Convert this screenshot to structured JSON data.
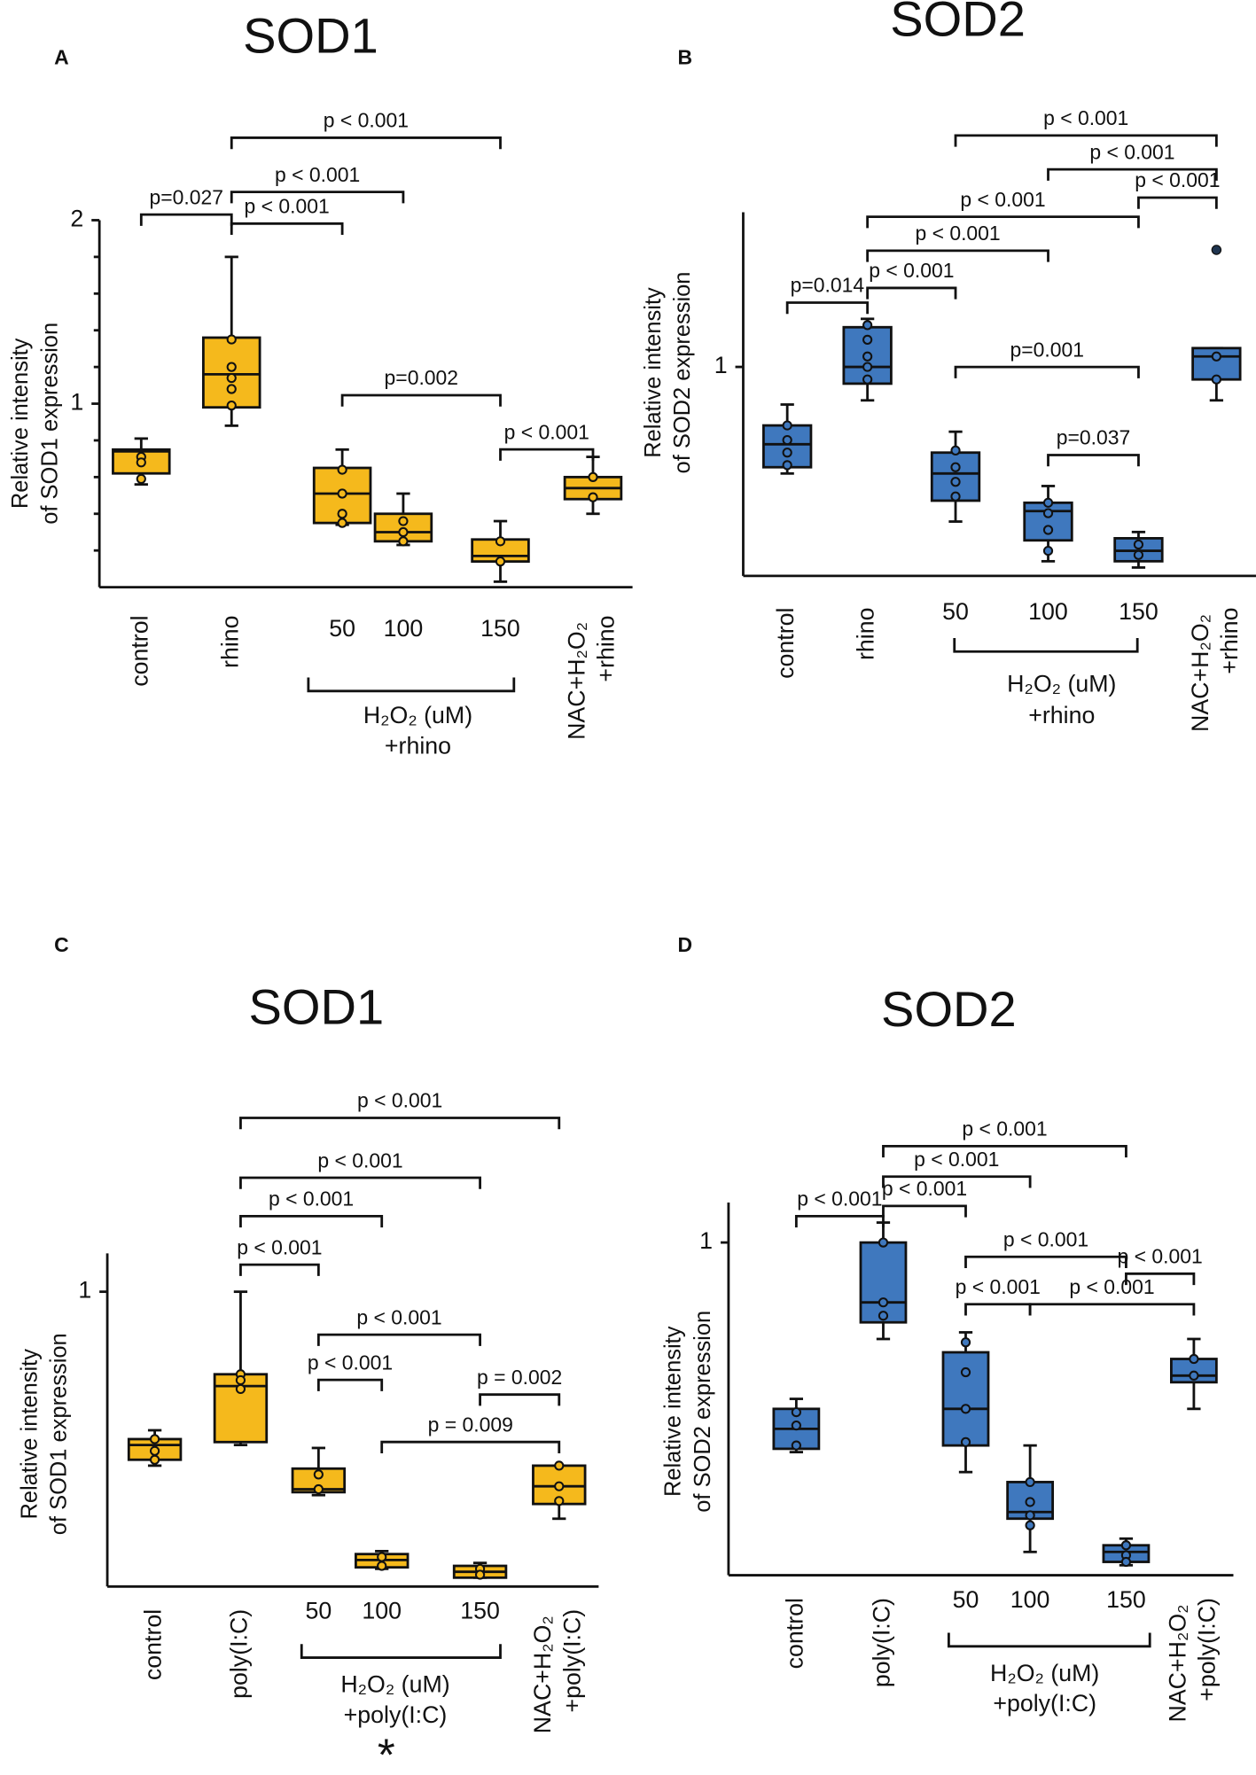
{
  "chart_data": [
    {
      "type": "box",
      "panel": "A",
      "title": "SOD1",
      "ylabel": [
        "Relative intensity",
        "of SOD1 expression"
      ],
      "ylim": [
        0,
        2
      ],
      "yticks": [
        1,
        2
      ],
      "yminor_ticks": [
        0.2,
        0.4,
        0.6,
        0.8,
        1.2,
        1.4,
        1.6,
        1.8
      ],
      "categories": [
        "control",
        "rhino",
        "50",
        "100",
        "150",
        "NAC+H₂O₂ +rhino"
      ],
      "group_label": [
        "H₂O₂ (uM)",
        "+rhino"
      ],
      "color": "#f5b91c",
      "boxes": [
        {
          "low": 0.56,
          "q1": 0.62,
          "median": 0.74,
          "q3": 0.75,
          "high": 0.81,
          "points": [
            0.71,
            0.68,
            0.59
          ]
        },
        {
          "low": 0.88,
          "q1": 0.98,
          "median": 1.16,
          "q3": 1.36,
          "high": 1.8,
          "points": [
            1.35,
            1.2,
            1.14,
            1.08,
            0.99
          ]
        },
        {
          "low": 0.34,
          "q1": 0.35,
          "median": 0.51,
          "q3": 0.65,
          "high": 0.75,
          "points": [
            0.64,
            0.51,
            0.4,
            0.35
          ]
        },
        {
          "low": 0.23,
          "q1": 0.25,
          "median": 0.3,
          "q3": 0.4,
          "high": 0.51,
          "points": [
            0.36,
            0.3,
            0.25
          ]
        },
        {
          "low": 0.03,
          "q1": 0.14,
          "median": 0.17,
          "q3": 0.26,
          "high": 0.36,
          "points": [
            0.25,
            0.14
          ]
        },
        {
          "low": 0.4,
          "q1": 0.48,
          "median": 0.54,
          "q3": 0.6,
          "high": 0.71,
          "points": [
            0.6,
            0.49
          ]
        }
      ],
      "comparisons": [
        {
          "between": [
            0,
            1
          ],
          "label": "p=0.027"
        },
        {
          "between": [
            1,
            2
          ],
          "label": "p < 0.001"
        },
        {
          "between": [
            1,
            3
          ],
          "label": "p < 0.001"
        },
        {
          "between": [
            1,
            4
          ],
          "label": "p < 0.001"
        },
        {
          "between": [
            2,
            4
          ],
          "label": "p=0.002"
        },
        {
          "between": [
            4,
            5
          ],
          "label": "p < 0.001"
        }
      ]
    },
    {
      "type": "box",
      "panel": "B",
      "title": "SOD2",
      "ylabel": [
        "Relative intensity",
        "of SOD2 expression"
      ],
      "ylim": [
        0,
        1.74
      ],
      "yticks": [
        1
      ],
      "categories": [
        "control",
        "rhino",
        "50",
        "100",
        "150",
        "NAC+H₂O₂ +rhino"
      ],
      "group_label": [
        "H₂O₂ (uM)",
        "+rhino"
      ],
      "color": "#3f78be",
      "boxes": [
        {
          "low": 0.49,
          "q1": 0.52,
          "median": 0.63,
          "q3": 0.72,
          "high": 0.82,
          "points": [
            0.72,
            0.65,
            0.59,
            0.53
          ]
        },
        {
          "low": 0.84,
          "q1": 0.92,
          "median": 1.0,
          "q3": 1.19,
          "high": 1.23,
          "points": [
            1.2,
            1.13,
            1.05,
            1.0,
            0.94
          ]
        },
        {
          "low": 0.26,
          "q1": 0.36,
          "median": 0.49,
          "q3": 0.59,
          "high": 0.69,
          "points": [
            0.6,
            0.52,
            0.45,
            0.38
          ]
        },
        {
          "low": 0.07,
          "q1": 0.17,
          "median": 0.31,
          "q3": 0.35,
          "high": 0.43,
          "points": [
            0.35,
            0.3,
            0.22,
            0.12
          ]
        },
        {
          "low": 0.04,
          "q1": 0.07,
          "median": 0.12,
          "q3": 0.18,
          "high": 0.21,
          "points": [
            0.15,
            0.1
          ]
        },
        {
          "low": 0.84,
          "q1": 0.94,
          "median": 1.05,
          "q3": 1.09,
          "high": 1.09,
          "points": [
            1.05,
            0.94
          ],
          "outliers": [
            1.56
          ]
        }
      ],
      "comparisons": [
        {
          "between": [
            0,
            1
          ],
          "label": "p=0.014"
        },
        {
          "between": [
            1,
            2
          ],
          "label": "p < 0.001"
        },
        {
          "between": [
            1,
            3
          ],
          "label": "p < 0.001"
        },
        {
          "between": [
            1,
            4
          ],
          "label": "p < 0.001"
        },
        {
          "between": [
            2,
            5
          ],
          "label": "p < 0.001"
        },
        {
          "between": [
            3,
            5
          ],
          "label": "p < 0.001"
        },
        {
          "between": [
            4,
            5
          ],
          "label": "p < 0.001"
        },
        {
          "between": [
            2,
            4
          ],
          "label": "p=0.001"
        },
        {
          "between": [
            3,
            4
          ],
          "label": "p=0.037"
        }
      ]
    },
    {
      "type": "box",
      "panel": "C",
      "title": "SOD1",
      "ylabel": [
        "Relative intensity",
        "of SOD1 expression"
      ],
      "ylim": [
        0,
        1.13
      ],
      "yticks": [
        1
      ],
      "categories": [
        "control",
        "poly(I:C)",
        "50",
        "100",
        "150",
        "NAC+H₂O₂ +poly(I:C)"
      ],
      "group_label": [
        "H₂O₂ (uM)",
        "+poly(I:C)"
      ],
      "color": "#f5b91c",
      "annotation": "*",
      "boxes": [
        {
          "low": 0.41,
          "q1": 0.43,
          "median": 0.48,
          "q3": 0.5,
          "high": 0.53,
          "points": [
            0.5,
            0.46,
            0.43
          ]
        },
        {
          "low": 0.48,
          "q1": 0.49,
          "median": 0.68,
          "q3": 0.72,
          "high": 1.0,
          "points": [
            0.72,
            0.7,
            0.67
          ]
        },
        {
          "low": 0.31,
          "q1": 0.32,
          "median": 0.33,
          "q3": 0.4,
          "high": 0.47,
          "points": [
            0.38,
            0.33
          ]
        },
        {
          "low": 0.06,
          "q1": 0.065,
          "median": 0.09,
          "q3": 0.11,
          "high": 0.12,
          "points": [
            0.1,
            0.07
          ]
        },
        {
          "low": 0.03,
          "q1": 0.03,
          "median": 0.05,
          "q3": 0.07,
          "high": 0.08,
          "points": [
            0.06,
            0.04
          ]
        },
        {
          "low": 0.23,
          "q1": 0.28,
          "median": 0.34,
          "q3": 0.41,
          "high": 0.41,
          "points": [
            0.41,
            0.34,
            0.29
          ]
        }
      ],
      "comparisons": [
        {
          "between": [
            1,
            5
          ],
          "label": "p < 0.001"
        },
        {
          "between": [
            1,
            4
          ],
          "label": "p < 0.001"
        },
        {
          "between": [
            1,
            3
          ],
          "label": "p < 0.001"
        },
        {
          "between": [
            1,
            2
          ],
          "label": "p < 0.001"
        },
        {
          "between": [
            2,
            4
          ],
          "label": "p < 0.001"
        },
        {
          "between": [
            2,
            3
          ],
          "label": "p < 0.001"
        },
        {
          "between": [
            4,
            5
          ],
          "label": "p = 0.002"
        },
        {
          "between": [
            3,
            5
          ],
          "label": "p = 0.009"
        }
      ]
    },
    {
      "type": "box",
      "panel": "D",
      "title": "SOD2",
      "ylabel": [
        "Relative intensity",
        "of SOD2 expression"
      ],
      "ylim": [
        0,
        1.12
      ],
      "yticks": [
        1
      ],
      "categories": [
        "control",
        "poly(I:C)",
        "50",
        "100",
        "150",
        "NAC+H₂O₂ +poly(I:C)"
      ],
      "group_label": [
        "H₂O₂ (uM)",
        "+poly(I:C)"
      ],
      "color": "#3f78be",
      "boxes": [
        {
          "low": 0.37,
          "q1": 0.38,
          "median": 0.44,
          "q3": 0.5,
          "high": 0.53,
          "points": [
            0.49,
            0.45,
            0.39
          ]
        },
        {
          "low": 0.71,
          "q1": 0.76,
          "median": 0.82,
          "q3": 1.0,
          "high": 1.06,
          "points": [
            1.0,
            0.82,
            0.78
          ]
        },
        {
          "low": 0.31,
          "q1": 0.39,
          "median": 0.5,
          "q3": 0.67,
          "high": 0.73,
          "points": [
            0.7,
            0.61,
            0.5,
            0.4
          ]
        },
        {
          "low": 0.07,
          "q1": 0.17,
          "median": 0.19,
          "q3": 0.28,
          "high": 0.39,
          "points": [
            0.28,
            0.22,
            0.18,
            0.15
          ]
        },
        {
          "low": 0.03,
          "q1": 0.04,
          "median": 0.07,
          "q3": 0.09,
          "high": 0.11,
          "points": [
            0.09,
            0.06,
            0.04
          ]
        },
        {
          "low": 0.5,
          "q1": 0.58,
          "median": 0.6,
          "q3": 0.65,
          "high": 0.71,
          "points": [
            0.65,
            0.6
          ]
        }
      ],
      "comparisons": [
        {
          "between": [
            0,
            1
          ],
          "label": "p < 0.001"
        },
        {
          "between": [
            1,
            4
          ],
          "label": "p < 0.001"
        },
        {
          "between": [
            1,
            3
          ],
          "label": "p < 0.001"
        },
        {
          "between": [
            1,
            2
          ],
          "label": "p < 0.001"
        },
        {
          "between": [
            2,
            4
          ],
          "label": "p < 0.001"
        },
        {
          "between": [
            4,
            5
          ],
          "label": "p < 0.001"
        },
        {
          "between": [
            2,
            3
          ],
          "label": "p < 0.001"
        },
        {
          "between": [
            3,
            5
          ],
          "label": "p < 0.001"
        }
      ]
    }
  ]
}
